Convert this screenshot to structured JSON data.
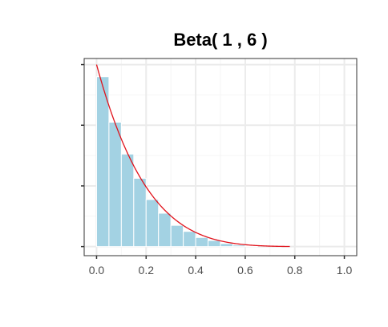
{
  "chart_data": {
    "type": "bar",
    "title": "Beta( 1 , 6 )",
    "xlabel": "",
    "ylabel": "",
    "xlim": [
      -0.05,
      1.05
    ],
    "ylim": [
      -0.3,
      6.2
    ],
    "xticks": [
      0.0,
      0.2,
      0.4,
      0.6,
      0.8,
      1.0
    ],
    "xtick_labels": [
      "0.0",
      "0.2",
      "0.4",
      "0.6",
      "0.8",
      "1.0"
    ],
    "yticks": [
      0,
      2,
      4,
      6
    ],
    "ytick_labels": [
      "",
      "",
      "",
      ""
    ],
    "bin_width": 0.05,
    "bins": [
      {
        "x0": 0.0,
        "x1": 0.05,
        "density": 5.6
      },
      {
        "x0": 0.05,
        "x1": 0.1,
        "density": 4.1
      },
      {
        "x0": 0.1,
        "x1": 0.15,
        "density": 3.05
      },
      {
        "x0": 0.15,
        "x1": 0.2,
        "density": 2.25
      },
      {
        "x0": 0.2,
        "x1": 0.25,
        "density": 1.55
      },
      {
        "x0": 0.25,
        "x1": 0.3,
        "density": 1.1
      },
      {
        "x0": 0.3,
        "x1": 0.35,
        "density": 0.7
      },
      {
        "x0": 0.35,
        "x1": 0.4,
        "density": 0.5
      },
      {
        "x0": 0.4,
        "x1": 0.45,
        "density": 0.3
      },
      {
        "x0": 0.45,
        "x1": 0.5,
        "density": 0.2
      },
      {
        "x0": 0.5,
        "x1": 0.55,
        "density": 0.1
      },
      {
        "x0": 0.55,
        "x1": 0.6,
        "density": 0.05
      },
      {
        "x0": 0.6,
        "x1": 0.65,
        "density": 0.02
      }
    ],
    "curve": {
      "distribution": "beta",
      "alpha": 1,
      "beta": 6,
      "x_range": [
        0.0,
        0.78
      ]
    },
    "grid": true,
    "colors": {
      "bar_fill": "#a3d2e3",
      "bar_outline": "#ffffff",
      "curve": "#e0121b",
      "grid_major": "#ebebeb",
      "grid_minor": "#f5f5f5",
      "panel_border": "#333333",
      "tick_label": "#4d4d4d"
    }
  }
}
